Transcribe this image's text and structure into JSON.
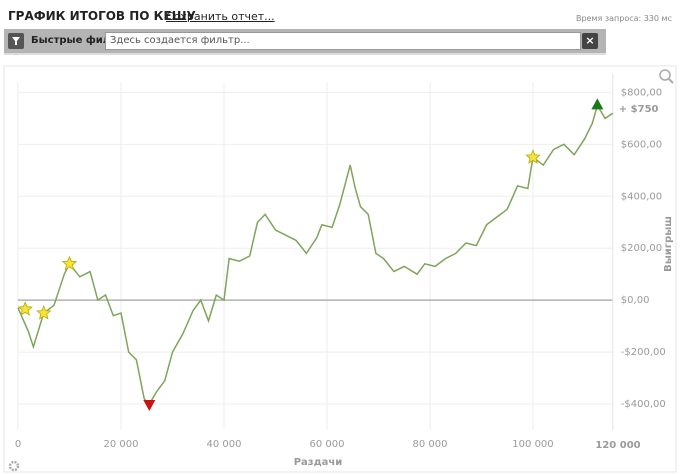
{
  "header": {
    "title": "ГРАФИК ИТОГОВ ПО КЕШУ",
    "save_link": "Сохранить отчет...",
    "query_time": "Время запроса: 330 мс"
  },
  "filter": {
    "label": "Быстрые фильт",
    "placeholder": "Здесь создается фильтр..."
  },
  "chart_data": {
    "type": "line",
    "x_label": "Раздачи",
    "y_label": "Выигрыш",
    "total_label": "120 000",
    "result_label": "+ $750",
    "xlim": [
      0,
      115500
    ],
    "ylim": [
      -500,
      840
    ],
    "xticks": [
      0,
      {
        "value": 20000,
        "label": "20 000"
      },
      {
        "value": 40000,
        "label": "40 000"
      },
      {
        "value": 60000,
        "label": "60 000"
      },
      {
        "value": 80000,
        "label": "80 000"
      },
      {
        "value": 100000,
        "label": "100 000"
      }
    ],
    "yticks": [
      {
        "value": -400,
        "label": "-$400,00"
      },
      {
        "value": -200,
        "label": "-$200,00"
      },
      {
        "value": 0,
        "label": "$0,00"
      },
      {
        "value": 200,
        "label": "$200,00"
      },
      {
        "value": 400,
        "label": "$400,00"
      },
      {
        "value": 600,
        "label": "$600,00"
      },
      {
        "value": 800,
        "label": "$800,00"
      }
    ],
    "grid": true,
    "zero_line": true,
    "series": [
      {
        "color": "#7ea55a",
        "x": [
          0,
          2000,
          3000,
          5000,
          7000,
          9000,
          10000,
          12000,
          14000,
          15500,
          17000,
          18500,
          20000,
          21500,
          23000,
          24500,
          25500,
          27000,
          28500,
          30000,
          32000,
          34000,
          35500,
          37000,
          38500,
          40000,
          41000,
          43000,
          45000,
          46500,
          48000,
          50000,
          52000,
          54000,
          56000,
          58000,
          59000,
          61000,
          62500,
          64500,
          65500,
          66500,
          68000,
          69500,
          71000,
          73000,
          75000,
          77500,
          79000,
          81000,
          83000,
          85000,
          87000,
          89000,
          91000,
          93000,
          95000,
          97000,
          99000,
          100000,
          102000,
          104000,
          106000,
          108000,
          110000,
          111500,
          112500,
          114000,
          115500
        ],
        "values": [
          -30,
          -120,
          -180,
          -50,
          -20,
          100,
          140,
          90,
          110,
          0,
          20,
          -60,
          -50,
          -200,
          -230,
          -380,
          -400,
          -350,
          -310,
          -200,
          -130,
          -40,
          0,
          -80,
          20,
          0,
          160,
          150,
          170,
          300,
          330,
          270,
          250,
          230,
          180,
          240,
          290,
          280,
          370,
          520,
          430,
          360,
          330,
          180,
          160,
          110,
          130,
          100,
          140,
          130,
          160,
          180,
          220,
          210,
          290,
          320,
          350,
          440,
          430,
          550,
          520,
          580,
          600,
          560,
          620,
          680,
          750,
          700,
          720
        ]
      }
    ],
    "markers": [
      {
        "x": 1400,
        "y": -35,
        "shape": "star",
        "color": "#f5e23a"
      },
      {
        "x": 5000,
        "y": -50,
        "shape": "star",
        "color": "#f5e23a"
      },
      {
        "x": 10000,
        "y": 140,
        "shape": "star",
        "color": "#f5e23a"
      },
      {
        "x": 100000,
        "y": 550,
        "shape": "star",
        "color": "#f5e23a"
      },
      {
        "x": 25500,
        "y": -400,
        "shape": "down",
        "color": "#cc1111"
      },
      {
        "x": 112500,
        "y": 750,
        "shape": "up",
        "color": "#1a7a1a"
      }
    ]
  }
}
